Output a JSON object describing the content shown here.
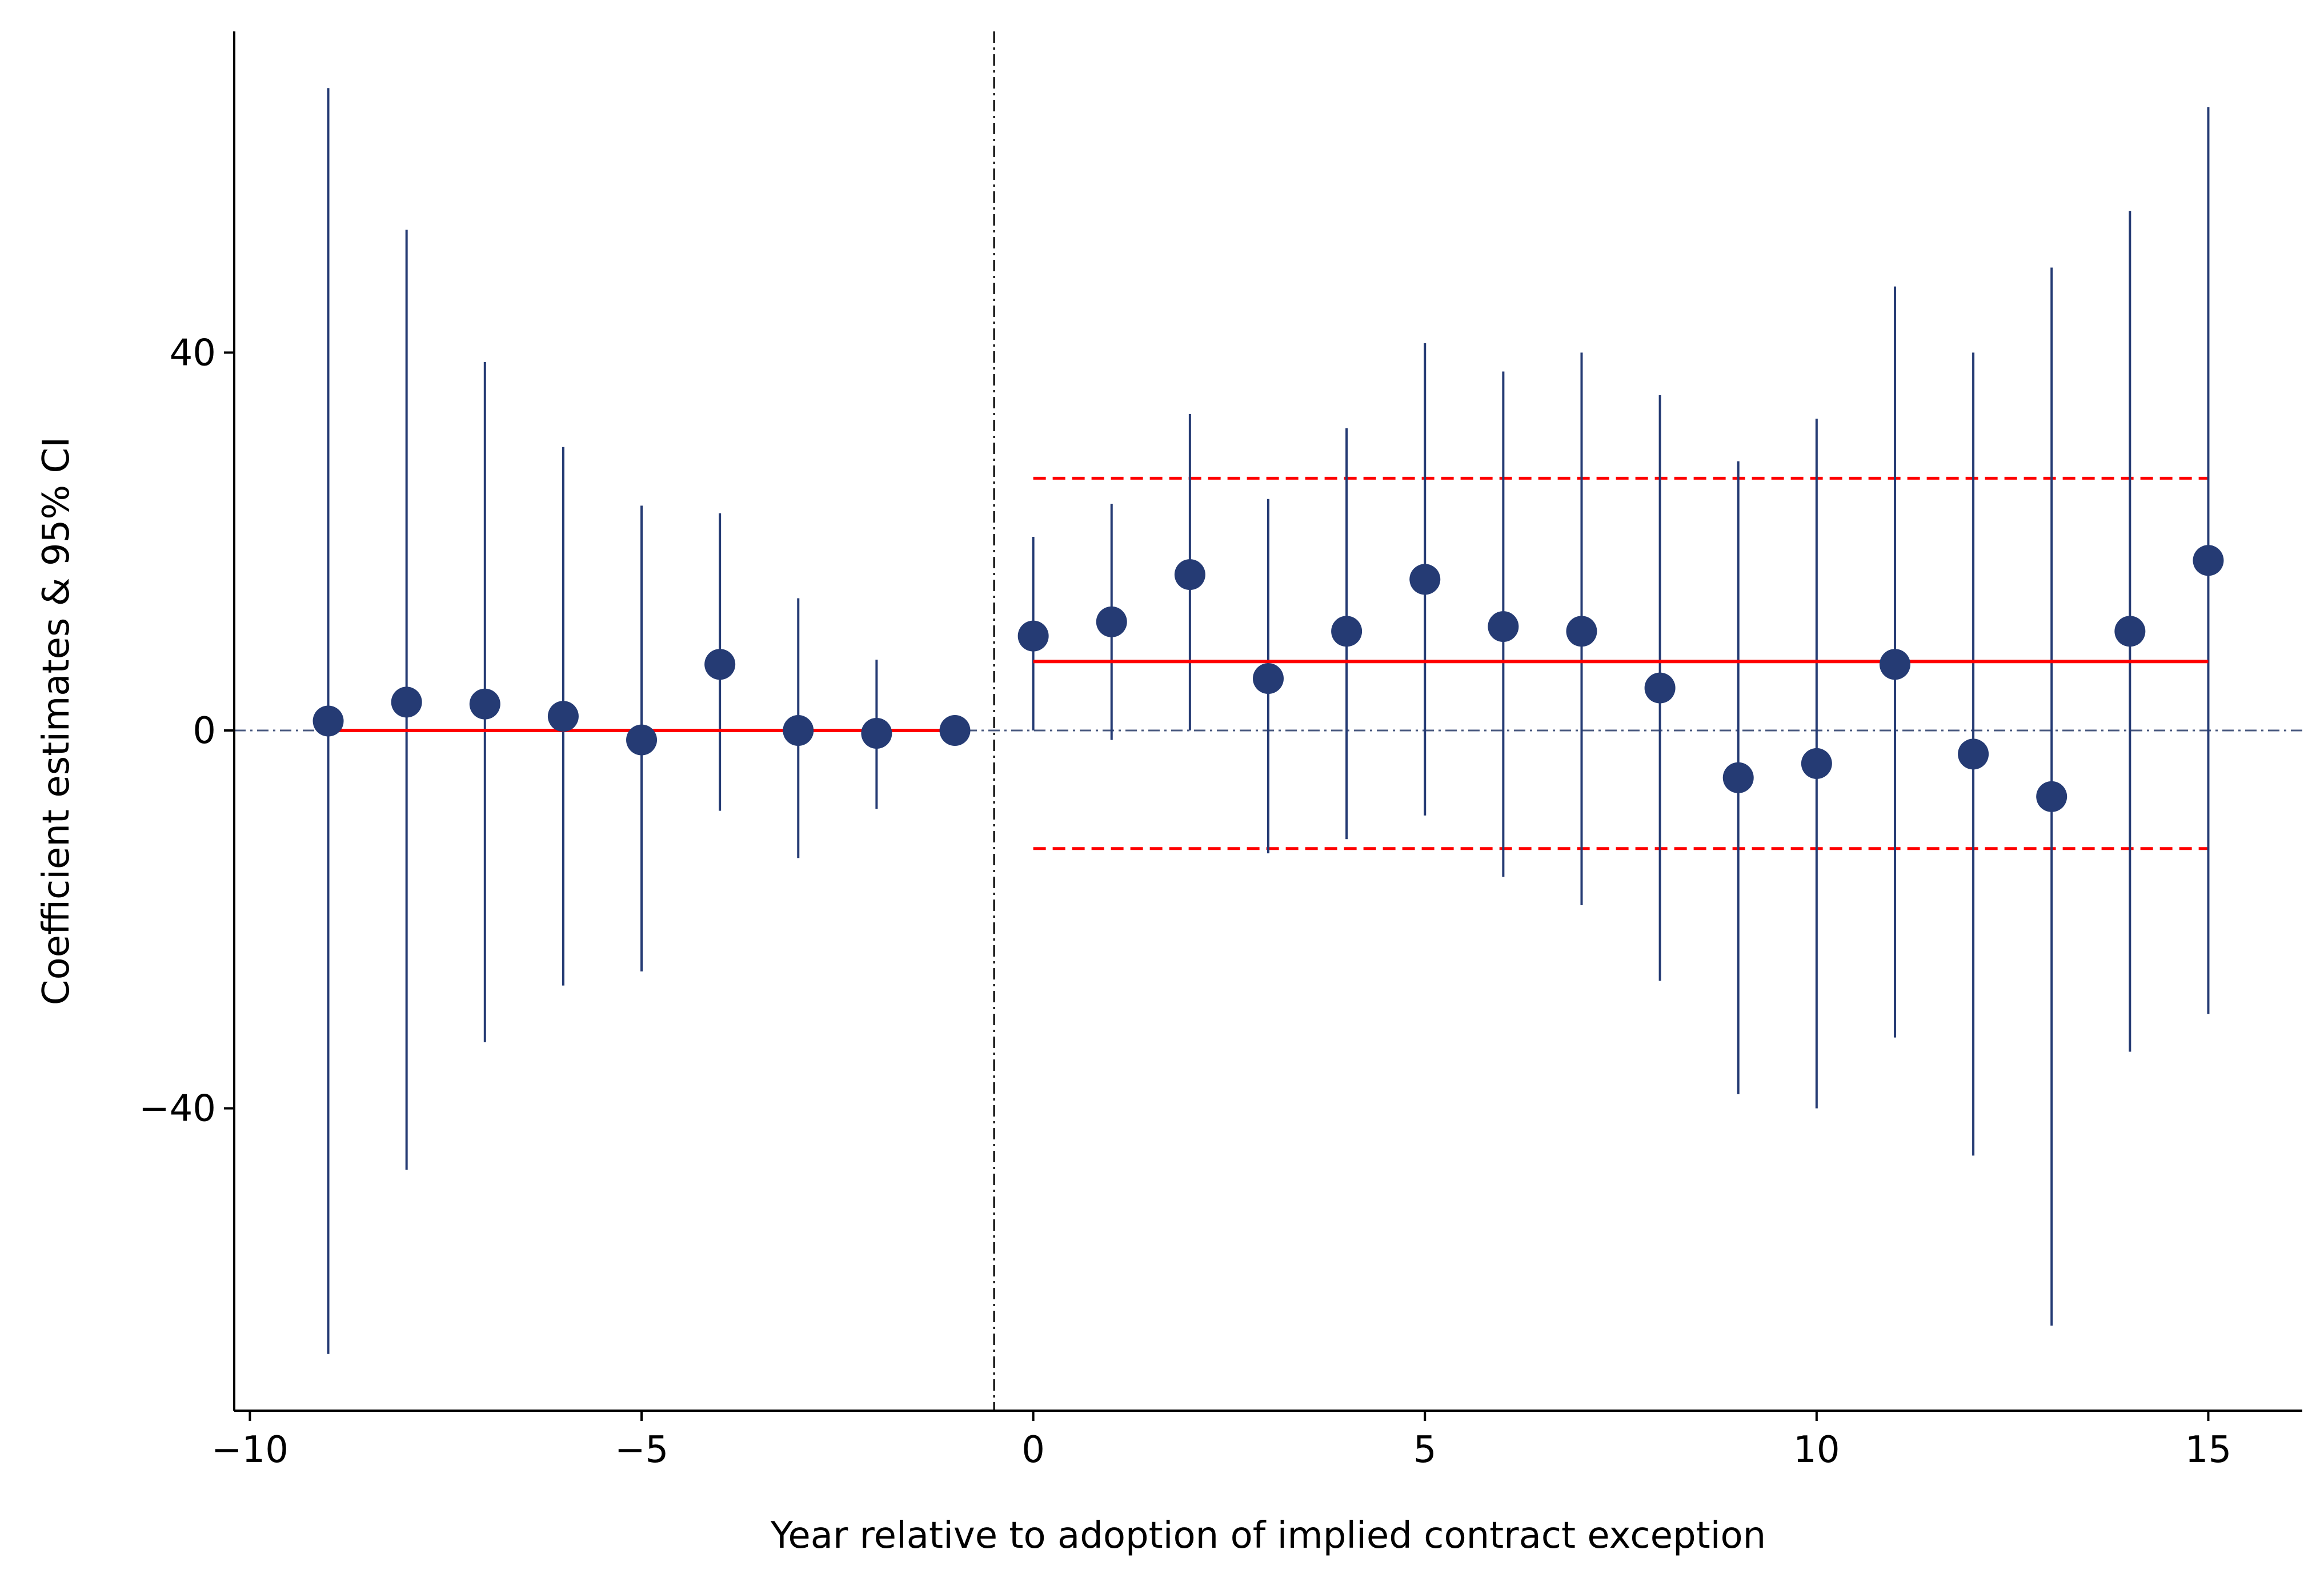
{
  "chart_data": {
    "type": "scatter",
    "title": "",
    "xlabel": "Year relative to adoption of implied contract exception",
    "ylabel": "Coefficient estimates & 95% CI",
    "xlim": [
      -10.2,
      16.2
    ],
    "ylim": [
      -72,
      74
    ],
    "xticks": [
      -10,
      -5,
      0,
      5,
      10,
      15
    ],
    "xtick_labels": [
      "−10",
      "−5",
      "0",
      "5",
      "10",
      "15"
    ],
    "yticks": [
      -40,
      0,
      40
    ],
    "ytick_labels": [
      "−40",
      "0",
      "40"
    ],
    "grid": false,
    "legend": "none",
    "series": [
      {
        "points": [
          {
            "x": -9,
            "y": 1.0,
            "lo": -66.0,
            "hi": 68.0
          },
          {
            "x": -8,
            "y": 3.0,
            "lo": -46.5,
            "hi": 53.0
          },
          {
            "x": -7,
            "y": 2.8,
            "lo": -33.0,
            "hi": 39.0
          },
          {
            "x": -6,
            "y": 1.5,
            "lo": -27.0,
            "hi": 30.0
          },
          {
            "x": -5,
            "y": -1.0,
            "lo": -25.5,
            "hi": 23.8
          },
          {
            "x": -4,
            "y": 7.0,
            "lo": -8.5,
            "hi": 23.0
          },
          {
            "x": -3,
            "y": 0.0,
            "lo": -13.5,
            "hi": 14.0
          },
          {
            "x": -2,
            "y": -0.3,
            "lo": -8.3,
            "hi": 7.5
          },
          {
            "x": -1,
            "y": 0.0
          },
          {
            "x": 0,
            "y": 10.0,
            "lo": 0.0,
            "hi": 20.5
          },
          {
            "x": 1,
            "y": 11.5,
            "lo": -1.0,
            "hi": 24.0
          },
          {
            "x": 2,
            "y": 16.5,
            "lo": 0.0,
            "hi": 33.5
          },
          {
            "x": 3,
            "y": 5.5,
            "lo": -13.0,
            "hi": 24.5
          },
          {
            "x": 4,
            "y": 10.5,
            "lo": -11.5,
            "hi": 32.0
          },
          {
            "x": 5,
            "y": 16.0,
            "lo": -9.0,
            "hi": 41.0
          },
          {
            "x": 6,
            "y": 11.0,
            "lo": -15.5,
            "hi": 38.0
          },
          {
            "x": 7,
            "y": 10.5,
            "lo": -18.5,
            "hi": 40.0
          },
          {
            "x": 8,
            "y": 4.5,
            "lo": -26.5,
            "hi": 35.5
          },
          {
            "x": 9,
            "y": -5.0,
            "lo": -38.5,
            "hi": 28.5
          },
          {
            "x": 10,
            "y": -3.5,
            "lo": -40.0,
            "hi": 33.0
          },
          {
            "x": 11,
            "y": 7.0,
            "lo": -32.5,
            "hi": 47.0
          },
          {
            "x": 12,
            "y": -2.5,
            "lo": -45.0,
            "hi": 40.0
          },
          {
            "x": 13,
            "y": -7.0,
            "lo": -63.0,
            "hi": 49.0
          },
          {
            "x": 14,
            "y": 10.5,
            "lo": -34.0,
            "hi": 55.0
          },
          {
            "x": 15,
            "y": 18.0,
            "lo": -30.0,
            "hi": 66.0
          }
        ]
      }
    ],
    "reference_lines": {
      "zero_y": 0,
      "event_x": -0.5,
      "pre_mean": {
        "x": [
          -9,
          -1
        ],
        "y": 0.0
      },
      "post_mean": {
        "x": [
          0,
          15
        ],
        "y": 7.3
      },
      "post_band": {
        "x": [
          0,
          15
        ],
        "lo": -12.5,
        "hi": 26.7
      }
    },
    "colors": {
      "points": "#253b74",
      "errorbars": "#253b74",
      "mean_line": "#ff0000",
      "band": "#ff0000",
      "zero_line": "#4a5a80",
      "event_line": "#000000",
      "axis": "#000000"
    }
  }
}
